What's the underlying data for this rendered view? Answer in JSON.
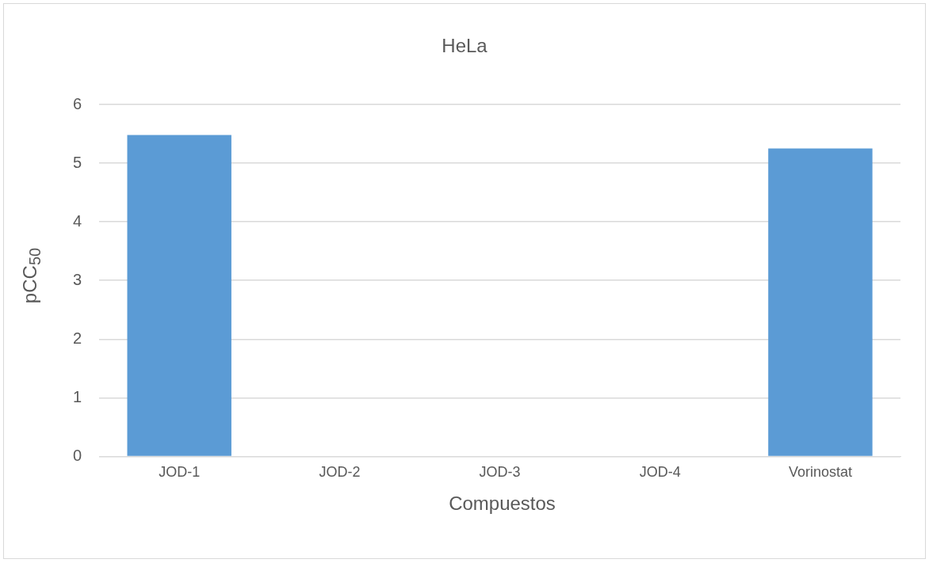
{
  "chart_data": {
    "type": "bar",
    "title": "HeLa",
    "xlabel": "Compuestos",
    "ylabel": "pCC$_{50}$",
    "categories": [
      "JOD-1",
      "JOD-2",
      "JOD-3",
      "JOD-4",
      "Vorinostat"
    ],
    "values": [
      5.48,
      null,
      null,
      null,
      5.25
    ],
    "color": "#5b9bd5",
    "ylim": [
      0,
      6
    ],
    "yticks": [
      0,
      1,
      2,
      3,
      4,
      5,
      6
    ],
    "grid": "y"
  }
}
